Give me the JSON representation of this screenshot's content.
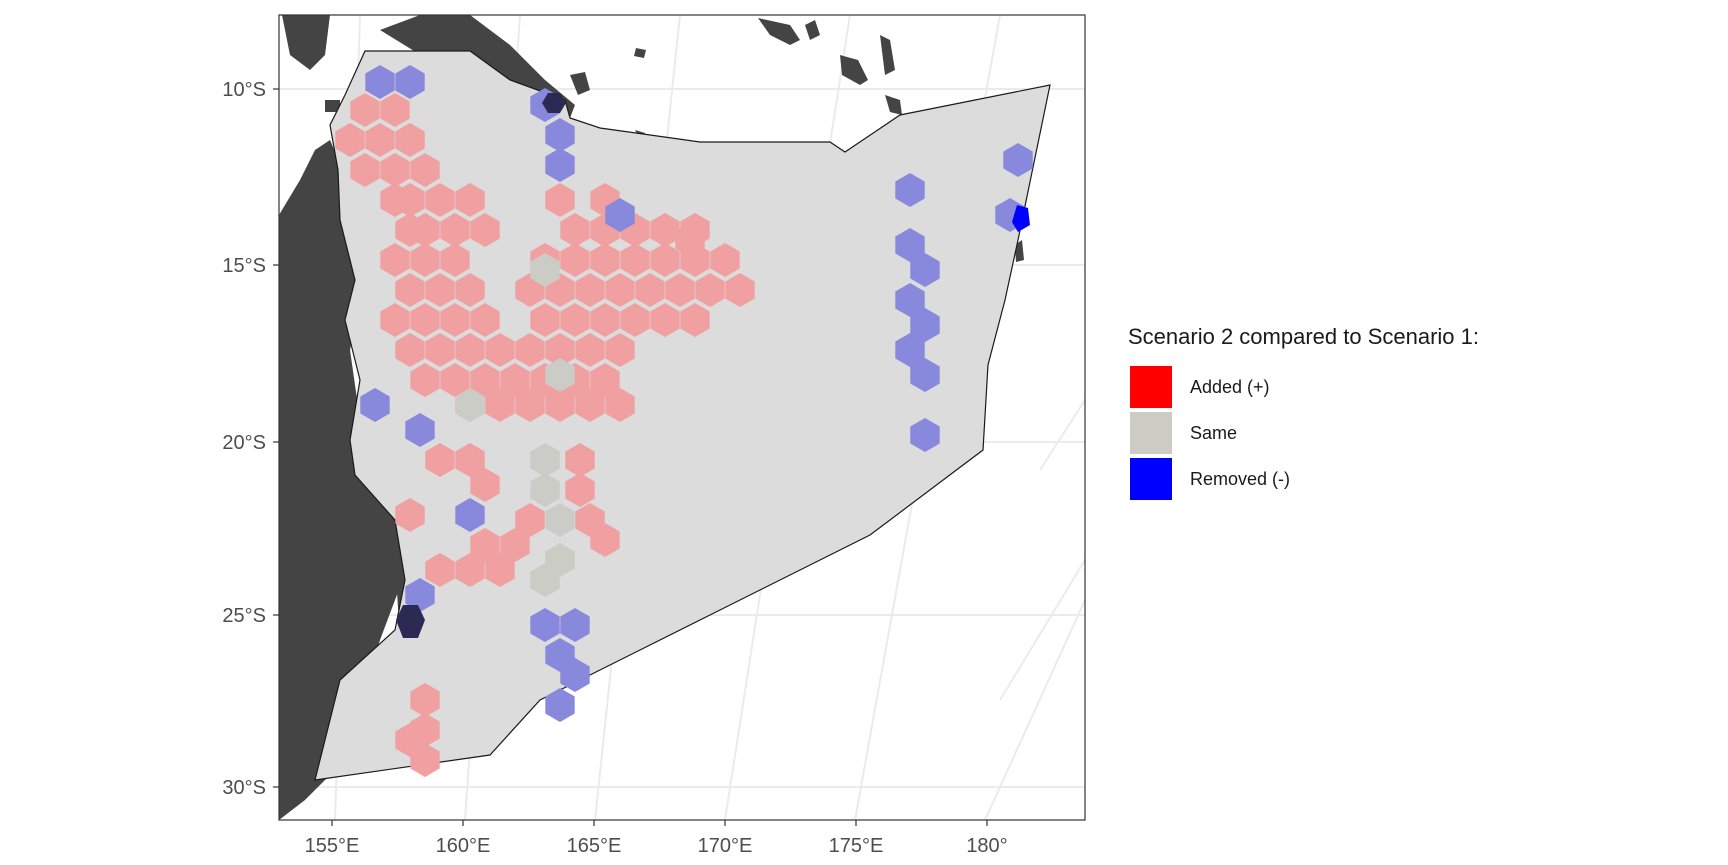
{
  "map": {
    "x_ticks": [
      "155°E",
      "160°E",
      "165°E",
      "170°E",
      "175°E",
      "180°"
    ],
    "y_ticks": [
      "10°S",
      "15°S",
      "20°S",
      "25°S",
      "30°S"
    ]
  },
  "legend": {
    "title": "Scenario 2 compared to Scenario 1:",
    "items": [
      {
        "label": "Added (+)",
        "color": "#ff0000"
      },
      {
        "label": "Same",
        "color": "#ccccc4"
      },
      {
        "label": "Removed (-)",
        "color": "#0000ff"
      }
    ]
  },
  "colors": {
    "land": "#444444",
    "study_area": "#dcdcdc",
    "added_hex": "#f0a0a0",
    "same_hex": "#ccccc6",
    "removed_hex": "#8888dd",
    "graticule": "#ebebeb",
    "panel_border": "#333333"
  }
}
